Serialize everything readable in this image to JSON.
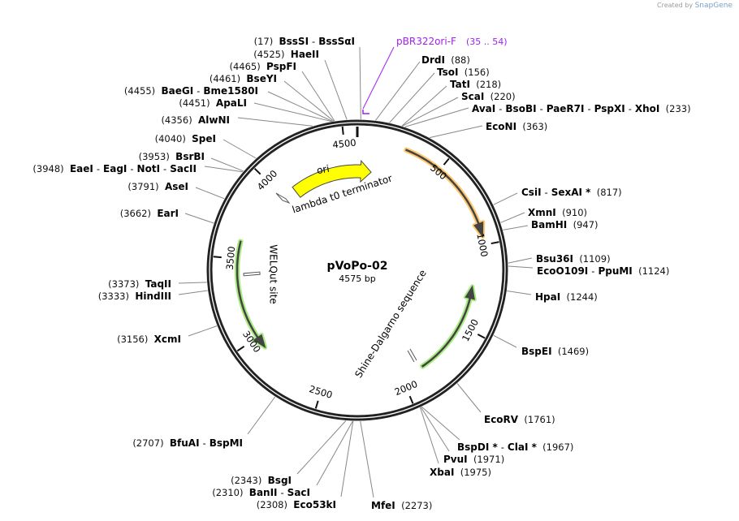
{
  "credit": {
    "prefix": "Created by",
    "brand": "SnapGene"
  },
  "plasmid": {
    "name": "pVoPo-02",
    "size_label": "4575 bp",
    "length": 4575
  },
  "primer": {
    "name": "pBR322ori-F",
    "range": "(35 .. 54)",
    "start": 35,
    "end": 54,
    "color": "#a020f0"
  },
  "features": [
    {
      "name": "ori",
      "color": "#ffff00"
    },
    {
      "name": "lambda t0 terminator"
    },
    {
      "name": "WELQut site"
    },
    {
      "name": "Shine-Dalgarno sequence"
    }
  ],
  "ticks": [
    "500",
    "1000",
    "1500",
    "2000",
    "2500",
    "3000",
    "3500",
    "4000",
    "4500"
  ],
  "sites": [
    {
      "names": [
        "BssSI",
        "BssSαI"
      ],
      "pos": "(17)",
      "bp": 17,
      "side": "left"
    },
    {
      "names": [
        "HaeII"
      ],
      "pos": "(4525)",
      "bp": 4525,
      "side": "left"
    },
    {
      "names": [
        "PspFI"
      ],
      "pos": "(4465)",
      "bp": 4465,
      "side": "left"
    },
    {
      "names": [
        "BseYI"
      ],
      "pos": "(4461)",
      "bp": 4461,
      "side": "left"
    },
    {
      "names": [
        "BaeGI",
        "Bme1580I"
      ],
      "pos": "(4455)",
      "bp": 4455,
      "side": "left"
    },
    {
      "names": [
        "ApaLI"
      ],
      "pos": "(4451)",
      "bp": 4451,
      "side": "left"
    },
    {
      "names": [
        "AlwNI"
      ],
      "pos": "(4356)",
      "bp": 4356,
      "side": "left"
    },
    {
      "names": [
        "SpeI"
      ],
      "pos": "(4040)",
      "bp": 4040,
      "side": "left"
    },
    {
      "names": [
        "BsrBI"
      ],
      "pos": "(3953)",
      "bp": 3953,
      "side": "left"
    },
    {
      "names": [
        "EaeI",
        "EagI",
        "NotI",
        "SacII"
      ],
      "pos": "(3948)",
      "bp": 3948,
      "side": "left"
    },
    {
      "names": [
        "AseI"
      ],
      "pos": "(3791)",
      "bp": 3791,
      "side": "left"
    },
    {
      "names": [
        "EarI"
      ],
      "pos": "(3662)",
      "bp": 3662,
      "side": "left"
    },
    {
      "names": [
        "TaqII"
      ],
      "pos": "(3373)",
      "bp": 3373,
      "side": "left"
    },
    {
      "names": [
        "HindIII"
      ],
      "pos": "(3333)",
      "bp": 3333,
      "side": "left"
    },
    {
      "names": [
        "XcmI"
      ],
      "pos": "(3156)",
      "bp": 3156,
      "side": "left"
    },
    {
      "names": [
        "BfuAI",
        "BspMI"
      ],
      "pos": "(2707)",
      "bp": 2707,
      "side": "left"
    },
    {
      "names": [
        "BsgI"
      ],
      "pos": "(2343)",
      "bp": 2343,
      "side": "left"
    },
    {
      "names": [
        "BanII",
        "SacI"
      ],
      "pos": "(2310)",
      "bp": 2310,
      "side": "left"
    },
    {
      "names": [
        "Eco53kI"
      ],
      "pos": "(2308)",
      "bp": 2308,
      "side": "left"
    },
    {
      "names": [
        "MfeI"
      ],
      "pos": "(2273)",
      "bp": 2273,
      "side": "right"
    },
    {
      "names": [
        "XbaI"
      ],
      "pos": "(1975)",
      "bp": 1975,
      "side": "right"
    },
    {
      "names": [
        "PvuI"
      ],
      "pos": "(1971)",
      "bp": 1971,
      "side": "right"
    },
    {
      "names": [
        "BspDI *",
        "ClaI *"
      ],
      "pos": "(1967)",
      "bp": 1967,
      "side": "right"
    },
    {
      "names": [
        "EcoRV"
      ],
      "pos": "(1761)",
      "bp": 1761,
      "side": "right"
    },
    {
      "names": [
        "BspEI"
      ],
      "pos": "(1469)",
      "bp": 1469,
      "side": "right"
    },
    {
      "names": [
        "HpaI"
      ],
      "pos": "(1244)",
      "bp": 1244,
      "side": "right"
    },
    {
      "names": [
        "EcoO109I",
        "PpuMI"
      ],
      "pos": "(1124)",
      "bp": 1124,
      "side": "right"
    },
    {
      "names": [
        "Bsu36I"
      ],
      "pos": "(1109)",
      "bp": 1109,
      "side": "right"
    },
    {
      "names": [
        "BamHI"
      ],
      "pos": "(947)",
      "bp": 947,
      "side": "right"
    },
    {
      "names": [
        "XmnI"
      ],
      "pos": "(910)",
      "bp": 910,
      "side": "right"
    },
    {
      "names": [
        "CsiI",
        "SexAI *"
      ],
      "pos": "(817)",
      "bp": 817,
      "side": "right"
    },
    {
      "names": [
        "EcoNI"
      ],
      "pos": "(363)",
      "bp": 363,
      "side": "right"
    },
    {
      "names": [
        "AvaI",
        "BsoBI",
        "PaeR7I",
        "PspXI",
        "XhoI"
      ],
      "pos": "(233)",
      "bp": 233,
      "side": "right"
    },
    {
      "names": [
        "ScaI"
      ],
      "pos": "(220)",
      "bp": 220,
      "side": "right"
    },
    {
      "names": [
        "TatI"
      ],
      "pos": "(218)",
      "bp": 218,
      "side": "right"
    },
    {
      "names": [
        "TsoI"
      ],
      "pos": "(156)",
      "bp": 156,
      "side": "right"
    },
    {
      "names": [
        "DrdI"
      ],
      "pos": "(88)",
      "bp": 88,
      "side": "right"
    }
  ]
}
